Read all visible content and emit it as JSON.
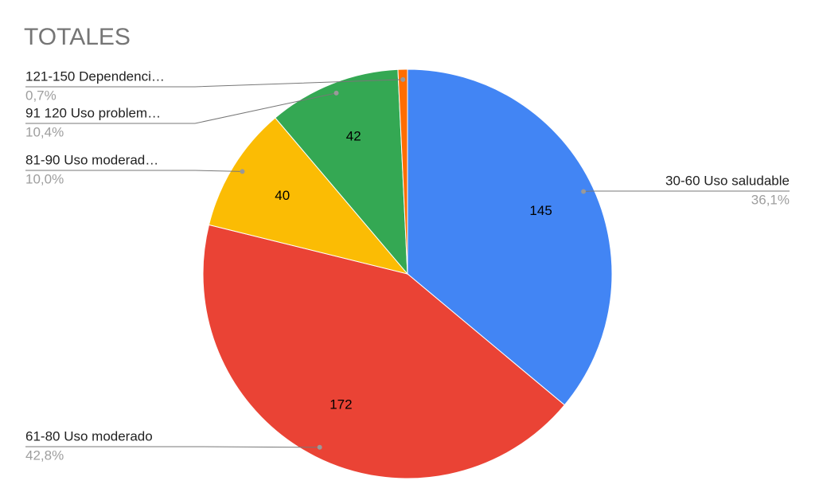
{
  "chart_data": {
    "type": "pie",
    "title": "TOTALES",
    "categories": [
      "30-60 Uso saludable",
      "61-80 Uso moderado",
      "81-90 Uso moderad…",
      "91 120 Uso problem…",
      "121-150 Dependenci…"
    ],
    "values": [
      145,
      172,
      40,
      42,
      3
    ],
    "share_labels": [
      "36,1%",
      "42,8%",
      "10,0%",
      "10,4%",
      "0,7%"
    ],
    "colors": [
      "#4285f4",
      "#ea4335",
      "#fbbc04",
      "#34a853",
      "#ff6d01"
    ]
  }
}
